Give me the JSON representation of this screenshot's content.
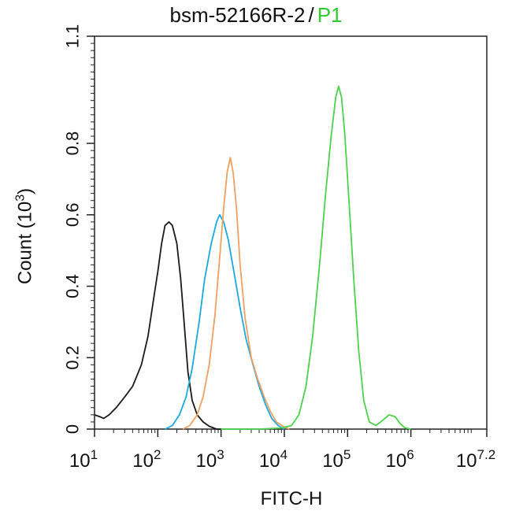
{
  "chart_data": {
    "type": "line",
    "title": {
      "sample": "bsm-52166R-2",
      "separator": "/",
      "gate": "P1",
      "gate_color": "#2ecc2e"
    },
    "xlabel": "FITC-H",
    "ylabel_prefix": "Count (10",
    "ylabel_exp": "3",
    "ylabel_suffix": ")",
    "x_scale": "log",
    "xlim": [
      10,
      15848932
    ],
    "ylim": [
      0,
      1.1
    ],
    "x_ticks": [
      {
        "base": "10",
        "exp": "1",
        "value": 10
      },
      {
        "base": "10",
        "exp": "2",
        "value": 100
      },
      {
        "base": "10",
        "exp": "3",
        "value": 1000
      },
      {
        "base": "10",
        "exp": "4",
        "value": 10000
      },
      {
        "base": "10",
        "exp": "5",
        "value": 100000
      },
      {
        "base": "10",
        "exp": "6",
        "value": 1000000
      },
      {
        "base": "10",
        "exp": "7.2",
        "value": 15848932
      }
    ],
    "y_ticks": [
      "0",
      "0.2",
      "0.4",
      "0.6",
      "0.8",
      "1.1"
    ],
    "y_tick_values": [
      0,
      0.2,
      0.4,
      0.6,
      0.8,
      1.1
    ],
    "grid": false,
    "series": [
      {
        "color": "#1a1a1a",
        "points": [
          [
            10,
            0.04
          ],
          [
            12,
            0.035
          ],
          [
            14,
            0.03
          ],
          [
            17,
            0.04
          ],
          [
            22,
            0.06
          ],
          [
            30,
            0.09
          ],
          [
            40,
            0.12
          ],
          [
            55,
            0.18
          ],
          [
            70,
            0.26
          ],
          [
            85,
            0.36
          ],
          [
            100,
            0.44
          ],
          [
            115,
            0.52
          ],
          [
            130,
            0.57
          ],
          [
            150,
            0.58
          ],
          [
            170,
            0.57
          ],
          [
            200,
            0.52
          ],
          [
            230,
            0.42
          ],
          [
            260,
            0.3
          ],
          [
            300,
            0.16
          ],
          [
            350,
            0.08
          ],
          [
            420,
            0.04
          ],
          [
            520,
            0.02
          ],
          [
            650,
            0.008
          ],
          [
            850,
            0.0
          ],
          [
            1000,
            0.0
          ]
        ]
      },
      {
        "color": "#1aa9e0",
        "points": [
          [
            130,
            0.0
          ],
          [
            170,
            0.01
          ],
          [
            220,
            0.04
          ],
          [
            280,
            0.09
          ],
          [
            350,
            0.17
          ],
          [
            450,
            0.3
          ],
          [
            550,
            0.42
          ],
          [
            700,
            0.52
          ],
          [
            850,
            0.58
          ],
          [
            950,
            0.6
          ],
          [
            1100,
            0.58
          ],
          [
            1300,
            0.53
          ],
          [
            1600,
            0.44
          ],
          [
            2000,
            0.34
          ],
          [
            2500,
            0.25
          ],
          [
            3200,
            0.18
          ],
          [
            4000,
            0.12
          ],
          [
            5000,
            0.07
          ],
          [
            6300,
            0.03
          ],
          [
            8000,
            0.01
          ],
          [
            10000,
            0.0
          ]
        ]
      },
      {
        "color": "#f0a060",
        "points": [
          [
            250,
            0.0
          ],
          [
            320,
            0.01
          ],
          [
            420,
            0.04
          ],
          [
            520,
            0.09
          ],
          [
            650,
            0.18
          ],
          [
            800,
            0.32
          ],
          [
            950,
            0.48
          ],
          [
            1100,
            0.62
          ],
          [
            1250,
            0.72
          ],
          [
            1400,
            0.76
          ],
          [
            1550,
            0.72
          ],
          [
            1750,
            0.62
          ],
          [
            2000,
            0.46
          ],
          [
            2400,
            0.31
          ],
          [
            3000,
            0.2
          ],
          [
            3800,
            0.14
          ],
          [
            4800,
            0.09
          ],
          [
            6000,
            0.05
          ],
          [
            7500,
            0.02
          ],
          [
            9500,
            0.008
          ],
          [
            12000,
            0.0
          ]
        ]
      },
      {
        "color": "#4cd24c",
        "points": [
          [
            1000,
            0.0
          ],
          [
            4000,
            0.0
          ],
          [
            9000,
            0.003
          ],
          [
            13000,
            0.01
          ],
          [
            17000,
            0.04
          ],
          [
            22000,
            0.12
          ],
          [
            28000,
            0.26
          ],
          [
            36000,
            0.46
          ],
          [
            45000,
            0.66
          ],
          [
            55000,
            0.82
          ],
          [
            65000,
            0.93
          ],
          [
            72000,
            0.96
          ],
          [
            80000,
            0.93
          ],
          [
            90000,
            0.83
          ],
          [
            105000,
            0.64
          ],
          [
            125000,
            0.42
          ],
          [
            150000,
            0.22
          ],
          [
            180000,
            0.08
          ],
          [
            220000,
            0.02
          ],
          [
            280000,
            0.01
          ],
          [
            360000,
            0.025
          ],
          [
            450000,
            0.04
          ],
          [
            560000,
            0.035
          ],
          [
            680000,
            0.015
          ],
          [
            800000,
            0.004
          ],
          [
            1000000,
            0.0
          ]
        ]
      }
    ]
  }
}
